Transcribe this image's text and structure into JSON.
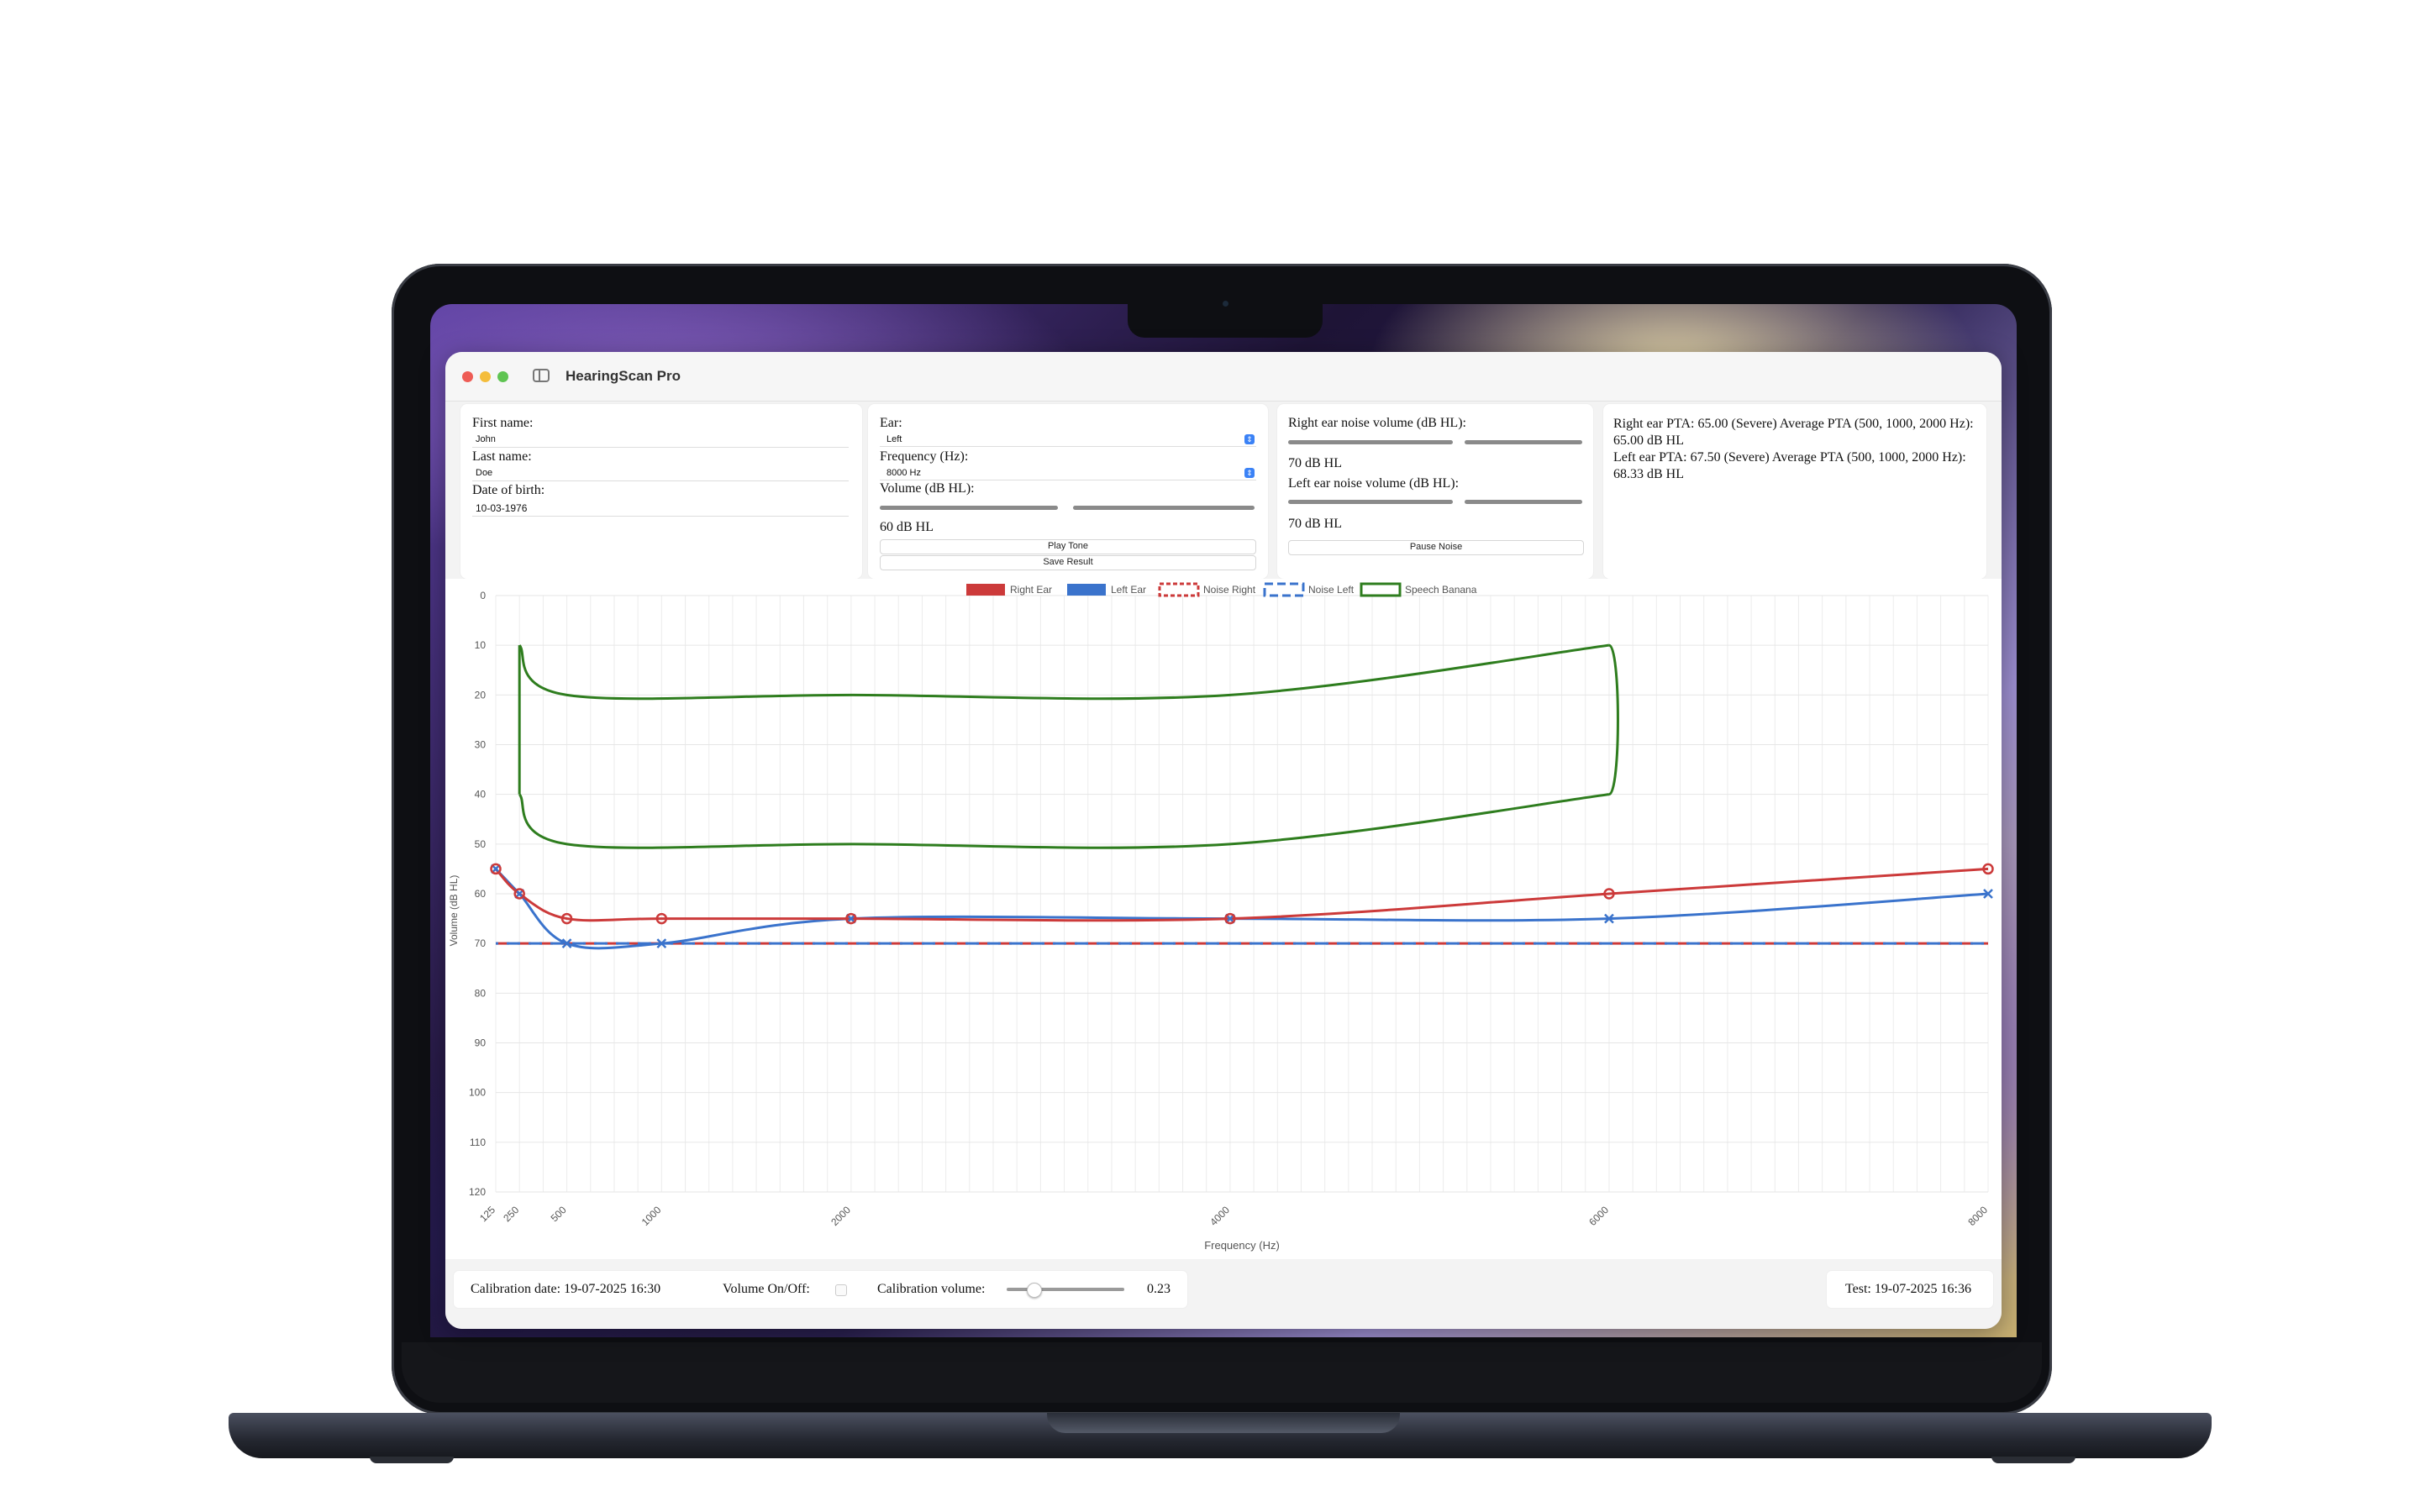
{
  "window": {
    "title": "HearingScan Pro"
  },
  "patient": {
    "first_name_label": "First name:",
    "first_name": "John",
    "last_name_label": "Last name:",
    "last_name": "Doe",
    "dob_label": "Date of birth:",
    "dob": "10-03-1976"
  },
  "tone": {
    "ear_label": "Ear:",
    "ear_value": "Left",
    "freq_label": "Frequency (Hz):",
    "freq_value": "8000 Hz",
    "volume_label": "Volume (dB HL):",
    "volume_value": "60 dB HL",
    "play_button": "Play Tone",
    "save_button": "Save Result"
  },
  "noise": {
    "right_label": "Right ear noise volume (dB HL):",
    "right_value": "70 dB HL",
    "left_label": "Left ear noise volume (dB HL):",
    "left_value": "70 dB HL",
    "pause_button": "Pause Noise"
  },
  "pta": {
    "right": "Right ear PTA: 65.00 (Severe) Average PTA (500, 1000, 2000 Hz): 65.00 dB HL",
    "left": "Left ear PTA: 67.50 (Severe) Average PTA (500, 1000, 2000 Hz): 68.33 dB HL"
  },
  "footer": {
    "calibration_date": "Calibration date: 19-07-2025 16:30",
    "volume_toggle_label": "Volume On/Off:",
    "calibration_volume_label": "Calibration volume:",
    "calibration_volume_value": "0.23",
    "calibration_volume": 0.23,
    "test_date": "Test: 19-07-2025 16:36"
  },
  "colors": {
    "right": "#cc3a3a",
    "left": "#3a73cc",
    "banana": "#2e7d1e"
  },
  "chart_data": {
    "type": "line",
    "xlabel": "Frequency (Hz)",
    "ylabel": "Volume (dB HL)",
    "xlim": [
      125,
      8000
    ],
    "ylim": [
      0,
      120
    ],
    "y_inverted": true,
    "x_ticks": [
      125,
      250,
      500,
      1000,
      2000,
      4000,
      6000,
      8000
    ],
    "y_ticks": [
      0,
      10,
      20,
      30,
      40,
      50,
      60,
      70,
      80,
      90,
      100,
      110,
      120
    ],
    "legend": [
      "Right Ear",
      "Left Ear",
      "Noise Right",
      "Noise Left",
      "Speech Banana"
    ],
    "legend_position": "top-center",
    "grid": true,
    "series": [
      {
        "name": "Right Ear",
        "x": [
          125,
          250,
          500,
          1000,
          2000,
          4000,
          6000,
          8000
        ],
        "y": [
          55,
          60,
          65,
          65,
          65,
          65,
          60,
          55
        ]
      },
      {
        "name": "Left Ear",
        "x": [
          125,
          250,
          500,
          1000,
          2000,
          4000,
          6000,
          8000
        ],
        "y": [
          55,
          60,
          70,
          70,
          65,
          65,
          65,
          60
        ]
      },
      {
        "name": "Noise Right",
        "x": [
          125,
          8000
        ],
        "y": [
          70,
          70
        ]
      },
      {
        "name": "Noise Left",
        "x": [
          125,
          8000
        ],
        "y": [
          70,
          70
        ]
      },
      {
        "name": "Speech Banana",
        "upper": {
          "x": [
            250,
            500,
            2000,
            4000,
            6000
          ],
          "y": [
            10,
            20,
            20,
            20,
            10
          ]
        },
        "lower": {
          "x": [
            250,
            500,
            2000,
            4000,
            6000
          ],
          "y": [
            40,
            50,
            50,
            50,
            40
          ]
        }
      }
    ]
  }
}
